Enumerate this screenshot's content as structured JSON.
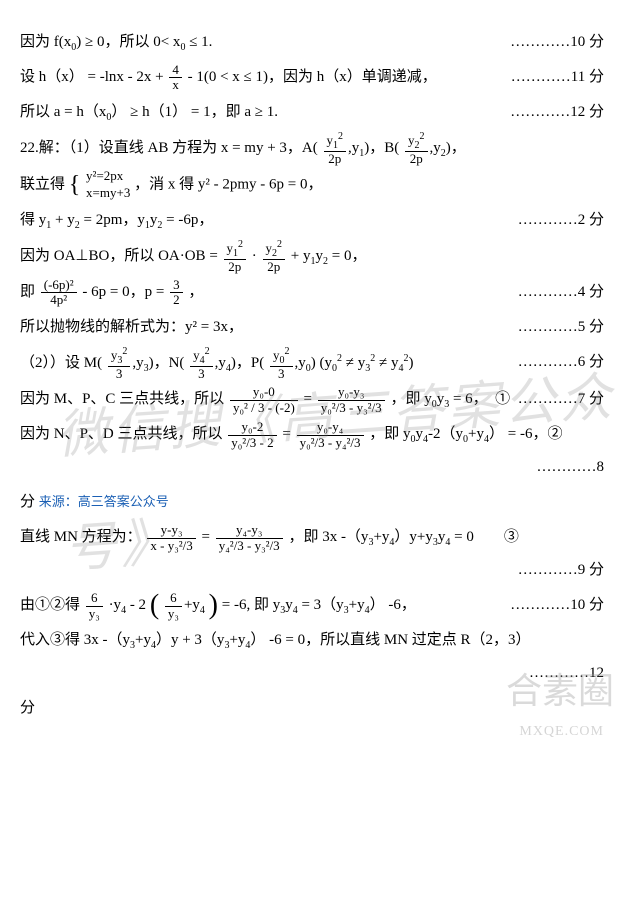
{
  "lines": {
    "l1a": "因为 f(x",
    "l1b": ") ≥ 0，所以 0< x",
    "l1c": " ≤ 1.",
    "l1score": "…………10 分",
    "l2a": "设 h（x） = -lnx - 2x + ",
    "l2num": "4",
    "l2den": "x",
    "l2b": " - 1(0 < x ≤ 1)，因为 h（x）单调递减，",
    "l2score": "…………11 分",
    "l3a": "所以 a = h（x",
    "l3b": "） ≥ h（1） = 1，即 a ≥ 1.",
    "l3score": "…………12 分",
    "l4a": "22.解：（1）设直线 AB 方程为 x = my + 3，A(",
    "l4n1": "y",
    "l4d1": "2p",
    "l4b": ",y",
    "l4c": ")，B(",
    "l4n2": "y",
    "l4d2": "2p",
    "l4d": ",y",
    "l4e": ")，",
    "l5a": "联立得",
    "l5s1": "y²=2px",
    "l5s2": "x=my+3",
    "l5b": "，消 x 得 y² - 2pmy - 6p = 0，",
    "l6a": "得 y",
    "l6b": " + y",
    "l6c": " = 2pm，y",
    "l6d": "y",
    "l6e": " = -6p，",
    "l6score": "…………2 分",
    "l7a": "因为 OA⊥BO，所以 OA·OB = ",
    "l7n1": "y",
    "l7d1": "2p",
    "l7b": " · ",
    "l7n2": "y",
    "l7d2": "2p",
    "l7c": " + y",
    "l7d": "y",
    "l7e": " = 0，",
    "l8a": "即 ",
    "l8n1": "(-6p)²",
    "l8d1": "4p²",
    "l8b": " - 6p = 0，p = ",
    "l8n2": "3",
    "l8d2": "2",
    "l8c": "，",
    "l8score": "…………4 分",
    "l9a": "所以抛物线的解析式为：y² = 3x，",
    "l9score": "…………5 分",
    "l10a": "（2））设 M(",
    "l10n1": "y",
    "l10d1": "3",
    "l10b": ",y",
    "l10c": ")，N(",
    "l10n2": "y",
    "l10d2": "3",
    "l10d": ",y",
    "l10e": ")，P(",
    "l10n3": "y",
    "l10d3": "3",
    "l10f": ",y",
    "l10g": ") (y",
    "l10h": " ≠ y",
    "l10i": " ≠ y",
    "l10j": ")",
    "l10score": "…………6 分",
    "l11a": "因为 M、P、C 三点共线，所以 ",
    "l11nA": "y₀-0",
    "l11dA": "y₀² / 3 - (-2)",
    "l11b": " = ",
    "l11nB": "y₀-y₃",
    "l11dB": "y₀²/3 - y₃²/3",
    "l11c": "，即 y",
    "l11d": "y",
    "l11e": " = 6，　①",
    "l11score": "…………7 分",
    "l12a": "因为 N、P、D 三点共线，所以 ",
    "l12nA": "y₀-2",
    "l12dA": "y₀²/3 - 2",
    "l12b": " = ",
    "l12nB": "y₀-y₄",
    "l12dB": "y₀²/3 - y₄²/3",
    "l12c": "，即 y",
    "l12d": "y",
    "l12e": "-2（y",
    "l12f": "+y",
    "l12g": "） = -6，②",
    "l12score": "…………8",
    "l12tail": "分 ",
    "source": "来源：高三答案公众号",
    "l13a": "直线 MN 方程为：",
    "l13nA": "y-y₃",
    "l13dA": "x - y₃²/3",
    "l13b": " = ",
    "l13nB": "y₄-y₃",
    "l13dB": "y₄²/3 - y₃²/3",
    "l13c": "，即 3x -（y",
    "l13d": "+y",
    "l13e": "）y+y",
    "l13f": "y",
    "l13g": " = 0　　③",
    "l13score": "…………9 分",
    "l14a": "由①②得",
    "l14n1": "6",
    "l14d1": "y₃",
    "l14b": "·y",
    "l14c": " - 2",
    "l14n2": "6",
    "l14d2": "y₃",
    "l14d": "+y",
    "l14e": " = -6, 即 y",
    "l14f": "y",
    "l14g": " = 3（y",
    "l14h": "+y",
    "l14i": "） -6，",
    "l14score": "…………10 分",
    "l15a": "代入③得 3x -（y",
    "l15b": "+y",
    "l15c": "）y + 3（y",
    "l15d": "+y",
    "l15e": "） -6 = 0，所以直线 MN 过定点 R（2，3）",
    "l15score": "…………12",
    "l15tail": "分"
  },
  "watermark": "微信搜《高三答案公众号》",
  "watermark2": "合素圈",
  "wm_url": "MXQE.COM"
}
